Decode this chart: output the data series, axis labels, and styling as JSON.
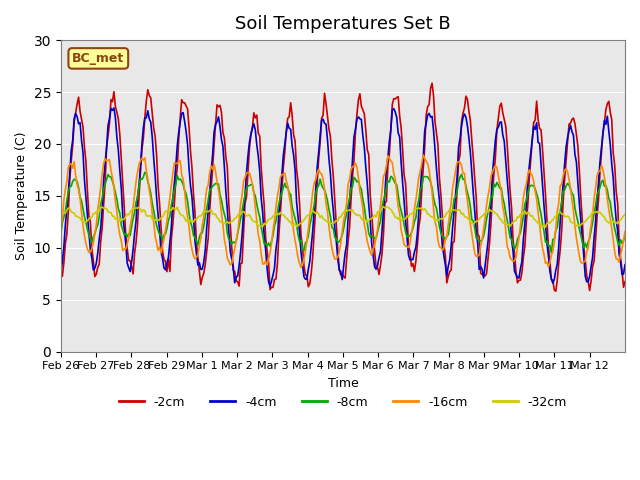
{
  "title": "Soil Temperatures Set B",
  "xlabel": "Time",
  "ylabel": "Soil Temperature (C)",
  "ylim": [
    0,
    30
  ],
  "background_color": "#e8e8e8",
  "annotation_text": "BC_met",
  "annotation_color": "#8B4513",
  "annotation_bg": "#ffff99",
  "series_labels": [
    "-2cm",
    "-4cm",
    "-8cm",
    "-16cm",
    "-32cm"
  ],
  "series_colors": [
    "#cc0000",
    "#0000cc",
    "#00aa00",
    "#ff8800",
    "#cccc00"
  ],
  "xtick_labels": [
    "Feb 26",
    "Feb 27",
    "Feb 28",
    "Feb 29",
    "Mar 1",
    "Mar 2",
    "Mar 3",
    "Mar 4",
    "Mar 5",
    "Mar 6",
    "Mar 7",
    "Mar 8",
    "Mar 9",
    "Mar 10",
    "Mar 11",
    "Mar 12"
  ],
  "n_points": 384,
  "days": 16
}
